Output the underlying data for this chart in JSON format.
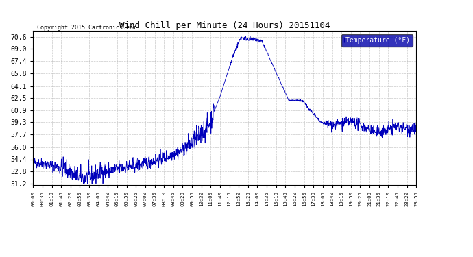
{
  "title": "Wind Chill per Minute (24 Hours) 20151104",
  "legend_label": "Temperature (°F)",
  "copyright_text": "Copyright 2015 Cartronics.com",
  "line_color": "#0000bb",
  "legend_bg_color": "#0000aa",
  "legend_text_color": "#ffffff",
  "background_color": "#ffffff",
  "grid_color": "#bbbbbb",
  "yticks": [
    51.2,
    52.8,
    54.4,
    56.0,
    57.7,
    59.3,
    60.9,
    62.5,
    64.1,
    65.8,
    67.4,
    69.0,
    70.6
  ],
  "ylim": [
    51.0,
    71.4
  ],
  "x_tick_labels": [
    "00:00",
    "00:35",
    "01:10",
    "01:45",
    "02:20",
    "02:55",
    "03:30",
    "04:05",
    "04:40",
    "05:15",
    "05:50",
    "06:25",
    "07:00",
    "07:35",
    "08:10",
    "08:45",
    "09:20",
    "09:55",
    "10:30",
    "11:05",
    "11:40",
    "12:15",
    "12:50",
    "13:25",
    "14:00",
    "14:35",
    "15:10",
    "15:45",
    "16:20",
    "16:55",
    "17:30",
    "18:05",
    "18:40",
    "19:15",
    "19:50",
    "20:25",
    "21:00",
    "21:35",
    "22:10",
    "22:45",
    "23:20",
    "23:55"
  ]
}
